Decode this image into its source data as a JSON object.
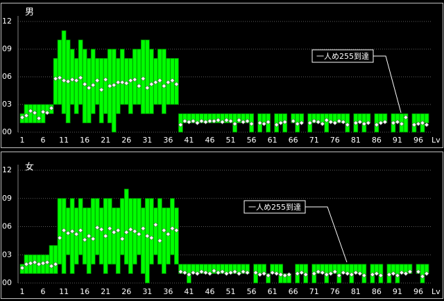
{
  "chart_data": [
    {
      "type": "range",
      "title": "男",
      "xlabel": "Lv",
      "annotation": "一人め255到達",
      "color": "#00ff00",
      "grid": true,
      "ylim": [
        0,
        12
      ],
      "yticks": [
        {
          "value": 0,
          "label": "00"
        },
        {
          "value": 3,
          "label": "03"
        },
        {
          "value": 6,
          "label": "06"
        },
        {
          "value": 9,
          "label": "09"
        },
        {
          "value": 12,
          "label": "12"
        }
      ],
      "xlim": [
        0,
        99
      ],
      "xticks": [
        1,
        6,
        11,
        16,
        21,
        26,
        31,
        36,
        41,
        46,
        51,
        56,
        61,
        66,
        71,
        76,
        81,
        86,
        91,
        96
      ],
      "x": [
        1,
        2,
        3,
        4,
        5,
        6,
        7,
        8,
        9,
        10,
        11,
        12,
        13,
        14,
        15,
        16,
        17,
        18,
        19,
        20,
        21,
        22,
        23,
        24,
        25,
        26,
        27,
        28,
        29,
        30,
        31,
        32,
        33,
        34,
        35,
        36,
        37,
        38,
        39,
        40,
        41,
        42,
        43,
        44,
        45,
        46,
        47,
        48,
        49,
        50,
        51,
        52,
        53,
        54,
        55,
        56,
        57,
        58,
        59,
        60,
        61,
        62,
        63,
        64,
        65,
        66,
        67,
        68,
        69,
        70,
        71,
        72,
        73,
        74,
        75,
        76,
        77,
        78,
        79,
        80,
        81,
        82,
        83,
        84,
        85,
        86,
        87,
        88,
        89,
        90,
        91,
        92,
        93,
        94,
        95,
        96,
        97,
        98
      ],
      "high": [
        2,
        3,
        3,
        3,
        3,
        3,
        3,
        3,
        8,
        10,
        11,
        10,
        9,
        8,
        10,
        9,
        8,
        9,
        8,
        8,
        8,
        9,
        9,
        8,
        9,
        8,
        8,
        9,
        9,
        10,
        10,
        9,
        8,
        9,
        9,
        8,
        8,
        8,
        2,
        2,
        2,
        2,
        2,
        2,
        2,
        2,
        2,
        2,
        2,
        2,
        2,
        2,
        2,
        2,
        2,
        2,
        null,
        2,
        2,
        2,
        null,
        2,
        2,
        2,
        null,
        2,
        2,
        2,
        null,
        2,
        2,
        2,
        2,
        2,
        2,
        2,
        2,
        2,
        2,
        null,
        2,
        2,
        2,
        2,
        null,
        2,
        2,
        2,
        null,
        2,
        2,
        2,
        2,
        null,
        2,
        2,
        2,
        2
      ],
      "low": [
        1,
        1,
        1,
        1,
        1,
        1,
        2,
        2,
        3,
        3,
        2,
        1,
        3,
        2,
        3,
        1,
        1,
        2,
        3,
        1,
        2,
        1,
        0,
        2,
        3,
        3,
        2,
        3,
        3,
        2,
        2,
        2,
        3,
        3,
        2,
        3,
        3,
        3,
        0,
        1,
        1,
        1,
        1,
        1,
        1,
        1,
        1,
        1,
        1,
        1,
        1,
        0,
        1,
        1,
        1,
        0,
        null,
        0,
        1,
        0,
        null,
        0,
        1,
        0,
        null,
        1,
        0,
        1,
        null,
        0,
        1,
        1,
        1,
        0,
        1,
        1,
        1,
        1,
        0,
        null,
        0,
        1,
        0,
        1,
        null,
        0,
        1,
        1,
        null,
        0,
        1,
        0,
        0,
        null,
        0,
        1,
        0,
        1
      ],
      "mean": [
        1.6,
        1.8,
        2.3,
        2.1,
        1.5,
        2.2,
        2.1,
        2.6,
        5.8,
        5.9,
        5.6,
        5.5,
        5.7,
        5.6,
        5.9,
        5.2,
        4.8,
        5.1,
        5.6,
        4.6,
        5.7,
        5.0,
        5.1,
        5.4,
        5.4,
        5.3,
        5.6,
        5.7,
        5.0,
        5.8,
        4.8,
        5.2,
        5.4,
        5.6,
        5.0,
        5.4,
        5.6,
        5.2,
        0.8,
        1.2,
        1.1,
        1.2,
        1.0,
        1.2,
        1.1,
        1.2,
        1.2,
        1.3,
        1.1,
        1.3,
        1.2,
        0.9,
        1.3,
        1.1,
        1.2,
        0.9,
        null,
        1.0,
        0.9,
        1.1,
        null,
        0.8,
        1.0,
        1.1,
        null,
        1.2,
        0.9,
        1.0,
        null,
        1.0,
        1.2,
        1.1,
        0.9,
        1.3,
        1.1,
        1.0,
        1.2,
        1.1,
        0.8,
        null,
        1.0,
        1.1,
        0.9,
        1.0,
        null,
        0.8,
        1.0,
        1.1,
        null,
        1.0,
        1.1,
        0.9,
        1.6,
        null,
        0.8,
        0.9,
        1.0,
        0.8
      ]
    },
    {
      "type": "range",
      "title": "女",
      "xlabel": "Lv",
      "annotation": "一人め255到達",
      "color": "#00ff00",
      "grid": true,
      "ylim": [
        0,
        12
      ],
      "yticks": [
        {
          "value": 0,
          "label": "00"
        },
        {
          "value": 3,
          "label": "03"
        },
        {
          "value": 6,
          "label": "06"
        },
        {
          "value": 9,
          "label": "09"
        },
        {
          "value": 12,
          "label": "12"
        }
      ],
      "xlim": [
        0,
        99
      ],
      "xticks": [
        1,
        6,
        11,
        16,
        21,
        26,
        31,
        36,
        41,
        46,
        51,
        56,
        61,
        66,
        71,
        76,
        81,
        86,
        91,
        96
      ],
      "x": [
        1,
        2,
        3,
        4,
        5,
        6,
        7,
        8,
        9,
        10,
        11,
        12,
        13,
        14,
        15,
        16,
        17,
        18,
        19,
        20,
        21,
        22,
        23,
        24,
        25,
        26,
        27,
        28,
        29,
        30,
        31,
        32,
        33,
        34,
        35,
        36,
        37,
        38,
        39,
        40,
        41,
        42,
        43,
        44,
        45,
        46,
        47,
        48,
        49,
        50,
        51,
        52,
        53,
        54,
        55,
        56,
        57,
        58,
        59,
        60,
        61,
        62,
        63,
        64,
        65,
        66,
        67,
        68,
        69,
        70,
        71,
        72,
        73,
        74,
        75,
        76,
        77,
        78,
        79,
        80,
        81,
        82,
        83,
        84,
        85,
        86,
        87,
        88,
        89,
        90,
        91,
        92,
        93,
        94,
        95,
        96,
        97,
        98
      ],
      "high": [
        2,
        3,
        3,
        3,
        3,
        3,
        3,
        4,
        4,
        9,
        9,
        8,
        9,
        8,
        9,
        8,
        8,
        9,
        9,
        8,
        9,
        9,
        8,
        8,
        9,
        10,
        9,
        9,
        9,
        8,
        9,
        9,
        8,
        9,
        8,
        8,
        9,
        8,
        2,
        2,
        2,
        2,
        2,
        2,
        2,
        2,
        2,
        2,
        2,
        2,
        2,
        2,
        2,
        2,
        2,
        null,
        2,
        2,
        2,
        1,
        2,
        2,
        2,
        1,
        1,
        null,
        2,
        2,
        2,
        null,
        2,
        2,
        2,
        2,
        2,
        2,
        2,
        2,
        2,
        2,
        2,
        2,
        2,
        null,
        2,
        2,
        2,
        null,
        2,
        2,
        2,
        2,
        2,
        2,
        null,
        2,
        2,
        2
      ],
      "low": [
        1,
        1,
        1,
        1,
        1,
        1,
        1,
        1,
        1,
        2,
        1,
        3,
        1,
        2,
        3,
        2,
        1,
        2,
        3,
        2,
        1,
        2,
        2,
        1,
        3,
        2,
        1,
        2,
        3,
        1,
        0,
        2,
        3,
        2,
        1,
        2,
        3,
        2,
        1,
        1,
        0,
        1,
        1,
        1,
        1,
        1,
        1,
        1,
        1,
        1,
        1,
        1,
        1,
        1,
        1,
        null,
        0,
        1,
        1,
        0,
        1,
        1,
        0,
        0,
        0,
        null,
        0,
        1,
        0,
        null,
        0,
        1,
        1,
        0,
        1,
        1,
        0,
        1,
        1,
        0,
        1,
        1,
        0,
        null,
        0,
        1,
        0,
        null,
        0,
        1,
        0,
        1,
        1,
        1,
        null,
        1,
        0,
        1
      ],
      "mean": [
        1.6,
        2.0,
        2.1,
        2.2,
        2.0,
        2.1,
        2.2,
        1.8,
        2.0,
        4.8,
        5.6,
        5.3,
        5.5,
        5.2,
        5.6,
        4.6,
        5.0,
        4.7,
        5.9,
        5.7,
        5.0,
        5.8,
        5.4,
        5.6,
        4.7,
        5.4,
        5.7,
        5.5,
        5.2,
        5.8,
        5.0,
        4.8,
        6.2,
        4.5,
        5.6,
        5.2,
        5.8,
        5.6,
        1.2,
        1.1,
        0.9,
        1.1,
        1.0,
        1.2,
        1.1,
        1.0,
        1.3,
        1.1,
        1.2,
        1.0,
        1.1,
        1.2,
        1.0,
        1.2,
        1.1,
        null,
        1.1,
        0.9,
        1.0,
        0.8,
        1.1,
        1.0,
        0.9,
        0.8,
        0.9,
        null,
        1.0,
        1.1,
        0.9,
        null,
        1.0,
        1.2,
        1.1,
        0.9,
        1.0,
        1.2,
        0.8,
        1.1,
        1.0,
        0.9,
        1.1,
        1.0,
        0.8,
        null,
        0.9,
        1.0,
        0.8,
        null,
        0.9,
        1.0,
        0.8,
        1.1,
        1.0,
        1.2,
        null,
        1.2,
        0.7,
        1.0
      ]
    }
  ]
}
